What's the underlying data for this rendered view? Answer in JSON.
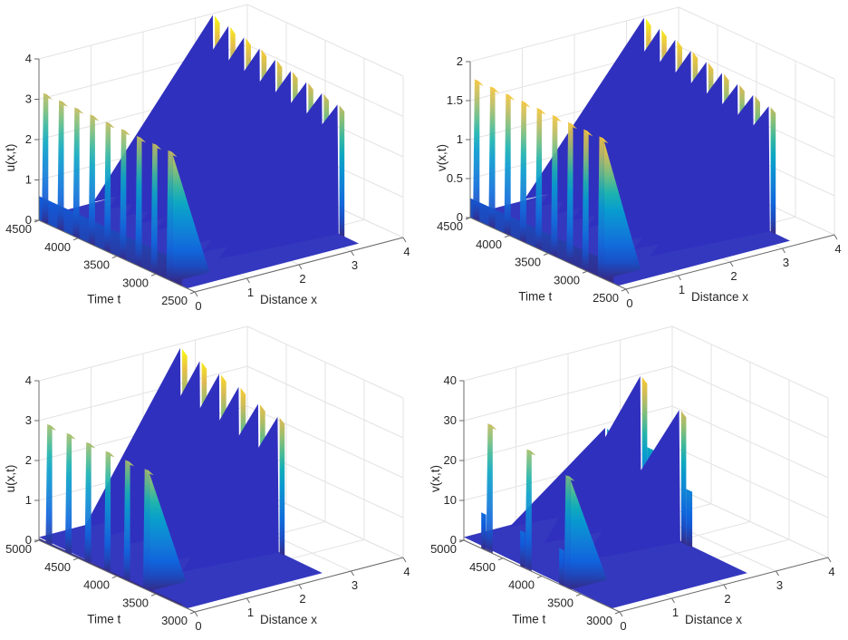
{
  "chart_data": [
    {
      "type": "surface",
      "title": "",
      "xlabel": "Distance x",
      "ylabel": "Time t",
      "zlabel": "u(x,t)",
      "xlim": [
        0,
        4
      ],
      "ylim": [
        2500,
        4500
      ],
      "zlim": [
        0,
        4
      ],
      "xticks": [
        "0",
        "1",
        "2",
        "3",
        "4"
      ],
      "yticks": [
        "2500",
        "3000",
        "3500",
        "4000",
        "4500"
      ],
      "zticks": [
        "0",
        "1",
        "2",
        "3",
        "4"
      ],
      "grid": true,
      "colormap": "parula",
      "domain_x_max": 3.3,
      "front_ridges": {
        "description": "Oscillation bursts at the left boundary (x=0) decaying by x≈0.3",
        "peak_times": [
          4450,
          4250,
          4050,
          3850,
          3650,
          3450,
          3250,
          3050,
          2850
        ],
        "peak_values": [
          3.2,
          3.2,
          3.2,
          3.2,
          3.2,
          3.2,
          3.2,
          3.2,
          3.2
        ],
        "baseline": 0.6
      },
      "back_ridges": {
        "description": "Oscillation bursts at the right boundary (x≈3.3) extending back toward x≈1",
        "peak_times": [
          4450,
          4250,
          4050,
          3850,
          3650,
          3450,
          3250,
          3050,
          2850
        ],
        "peak_values": [
          4.0,
          3.9,
          3.8,
          3.7,
          3.6,
          3.5,
          3.4,
          3.3,
          3.2
        ]
      }
    },
    {
      "type": "surface",
      "title": "",
      "xlabel": "Distance x",
      "ylabel": "Time t",
      "zlabel": "v(x,t)",
      "xlim": [
        0,
        4
      ],
      "ylim": [
        2500,
        4500
      ],
      "zlim": [
        0,
        2
      ],
      "xticks": [
        "0",
        "1",
        "2",
        "3",
        "4"
      ],
      "yticks": [
        "2500",
        "3000",
        "3500",
        "4000",
        "4500"
      ],
      "zticks": [
        "0",
        "0.5",
        "1",
        "1.5",
        "2"
      ],
      "grid": true,
      "colormap": "parula",
      "domain_x_max": 3.3,
      "front_ridges": {
        "description": "Oscillation bursts at the left boundary (x=0)",
        "peak_times": [
          4450,
          4250,
          4050,
          3850,
          3650,
          3450,
          3250,
          3050,
          2850
        ],
        "peak_values": [
          1.8,
          1.8,
          1.8,
          1.8,
          1.8,
          1.8,
          1.8,
          1.8,
          1.8
        ],
        "baseline": 0.25
      },
      "back_ridges": {
        "description": "Oscillation bursts at the right boundary (x≈3.3)",
        "peak_times": [
          4450,
          4250,
          4050,
          3850,
          3650,
          3450,
          3250,
          3050,
          2850
        ],
        "peak_values": [
          2.0,
          1.95,
          1.9,
          1.85,
          1.8,
          1.75,
          1.7,
          1.65,
          1.6
        ]
      }
    },
    {
      "type": "surface",
      "title": "",
      "xlabel": "Distance x",
      "ylabel": "Time t",
      "zlabel": "u(x,t)",
      "xlim": [
        0,
        4
      ],
      "ylim": [
        3000,
        5000
      ],
      "zlim": [
        0,
        4
      ],
      "xticks": [
        "0",
        "1",
        "2",
        "3",
        "4"
      ],
      "yticks": [
        "3000",
        "3500",
        "4000",
        "4500",
        "5000"
      ],
      "zticks": [
        "0",
        "1",
        "2",
        "3",
        "4"
      ],
      "grid": true,
      "colormap": "parula",
      "domain_x_max": 2.6,
      "front_ridges": {
        "description": "Oscillation bursts at the left boundary (x=0)",
        "peak_times": [
          4900,
          4650,
          4400,
          4150,
          3900,
          3650
        ],
        "peak_values": [
          3.0,
          3.0,
          3.0,
          3.0,
          3.0,
          3.0
        ],
        "baseline": 0.05
      },
      "back_ridges": {
        "description": "Oscillation bursts at the right boundary (x≈2.6)",
        "peak_times": [
          4900,
          4650,
          4400,
          4150,
          3900,
          3650
        ],
        "peak_values": [
          4.0,
          3.9,
          3.8,
          3.7,
          3.5,
          3.4
        ]
      }
    },
    {
      "type": "surface",
      "title": "",
      "xlabel": "Distance x",
      "ylabel": "Time t",
      "zlabel": "v(x,t)",
      "xlim": [
        0,
        4
      ],
      "ylim": [
        3000,
        5000
      ],
      "zlim": [
        0,
        40
      ],
      "xticks": [
        "0",
        "1",
        "2",
        "3",
        "4"
      ],
      "yticks": [
        "3000",
        "3500",
        "4000",
        "4500",
        "5000"
      ],
      "zticks": [
        "0",
        "10",
        "20",
        "30",
        "40"
      ],
      "grid": true,
      "colormap": "parula",
      "domain_x_max": 2.6,
      "front_ridges": {
        "description": "Large bursts at the left boundary (x=0) with lower shoulders",
        "peak_times": [
          4700,
          4200,
          3700
        ],
        "peak_values": [
          32,
          30,
          28
        ],
        "shoulder_values": [
          9,
          9,
          9
        ]
      },
      "back_ridges": {
        "description": "Bursts at the right boundary (x≈2.6) alternating with shoulders",
        "peak_times": [
          4900,
          4450,
          3950
        ],
        "peak_values": [
          20,
          37,
          33
        ],
        "shoulder_values": [
          20,
          20,
          14
        ]
      }
    }
  ]
}
